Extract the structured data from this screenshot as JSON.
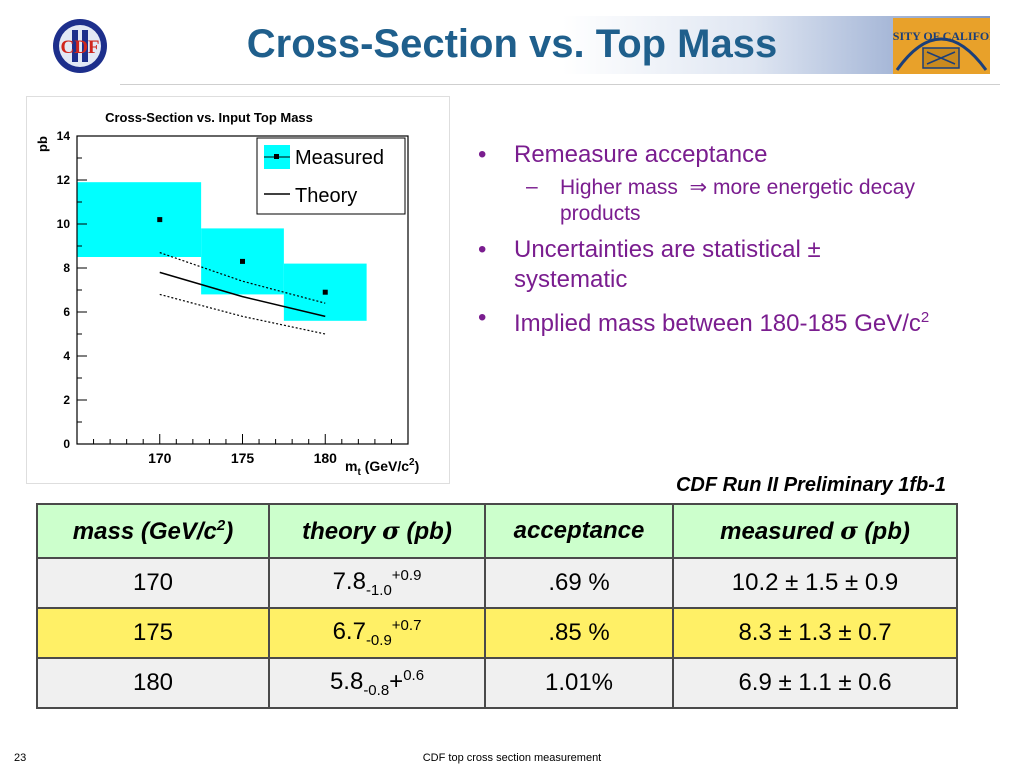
{
  "slide": {
    "title": "Cross-Section vs. Top Mass",
    "page_number": "23",
    "footer": "CDF top cross section measurement",
    "logo_left_text": "CDF",
    "logo_right_text": "RSITY OF CALIFOR"
  },
  "bullets": [
    {
      "text": "Remeasure acceptance",
      "sub": [
        {
          "pre": "Higher mass",
          "arrow": "⇒",
          "post": "more energetic decay products"
        }
      ]
    },
    {
      "text": "Uncertainties are statistical ± systematic",
      "sub": []
    },
    {
      "text_pre": "Implied mass between 180-185 GeV/c",
      "text_sup": "2",
      "sub": []
    }
  ],
  "table": {
    "caption": "CDF Run II Preliminary 1fb-1",
    "headers": {
      "mass_pre": "mass (GeV/c",
      "mass_sup": "2",
      "mass_post": ")",
      "theory_pre": "theory ",
      "theory_sym": "σ",
      "theory_post": " (pb)",
      "acceptance": "acceptance",
      "measured_pre": "measured ",
      "measured_sym": "σ",
      "measured_post": " (pb)"
    },
    "rows": [
      {
        "mass": "170",
        "theory_val": "7.8",
        "theory_low": "-1.0",
        "theory_plus": "",
        "theory_high": "+0.9",
        "acceptance": ".69 %",
        "measured": "10.2 ± 1.5 ± 0.9"
      },
      {
        "mass": "175",
        "theory_val": "6.7",
        "theory_low": "-0.9",
        "theory_plus": "",
        "theory_high": "+0.7",
        "acceptance": ".85 %",
        "measured": "8.3 ± 1.3 ± 0.7"
      },
      {
        "mass": "180",
        "theory_val": "5.8",
        "theory_low": "-0.8",
        "theory_plus": "+",
        "theory_high": "0.6",
        "acceptance": "1.01%",
        "measured": "6.9 ± 1.1 ± 0.6"
      }
    ]
  },
  "colors": {
    "title": "#1f5f8c",
    "bullet_text": "#7a1d8f",
    "header_row": "#ccffcc",
    "highlight_row": "#fff066",
    "band": "#00ffff"
  },
  "chart_data": {
    "type": "scatter",
    "title": "Cross-Section vs. Input Top Mass",
    "ylabel": "pb",
    "xlabel_main": "m",
    "xlabel_sub": "t",
    "xlabel_unit_pre": "(GeV/c",
    "xlabel_unit_sup": "2",
    "xlabel_unit_post": ")",
    "xlim": [
      165,
      185
    ],
    "ylim": [
      0,
      14
    ],
    "x_ticks": [
      170,
      175,
      180
    ],
    "y_ticks": [
      0,
      2,
      4,
      6,
      8,
      10,
      12,
      14
    ],
    "legend_position": "top-right",
    "legend": {
      "measured": "Measured",
      "theory": "Theory"
    },
    "measured": [
      {
        "x": 170,
        "y": 10.2,
        "x_low": 165,
        "x_high": 172.5,
        "y_low": 8.5,
        "y_high": 11.9
      },
      {
        "x": 175,
        "y": 8.3,
        "x_low": 172.5,
        "x_high": 177.5,
        "y_low": 6.8,
        "y_high": 9.8
      },
      {
        "x": 180,
        "y": 6.9,
        "x_low": 177.5,
        "x_high": 182.5,
        "y_low": 5.6,
        "y_high": 8.2
      }
    ],
    "theory": {
      "x": [
        170,
        175,
        180
      ],
      "y": [
        7.8,
        6.7,
        5.8
      ],
      "upper": [
        8.7,
        7.4,
        6.4
      ],
      "lower": [
        6.8,
        5.8,
        5.0
      ]
    }
  }
}
